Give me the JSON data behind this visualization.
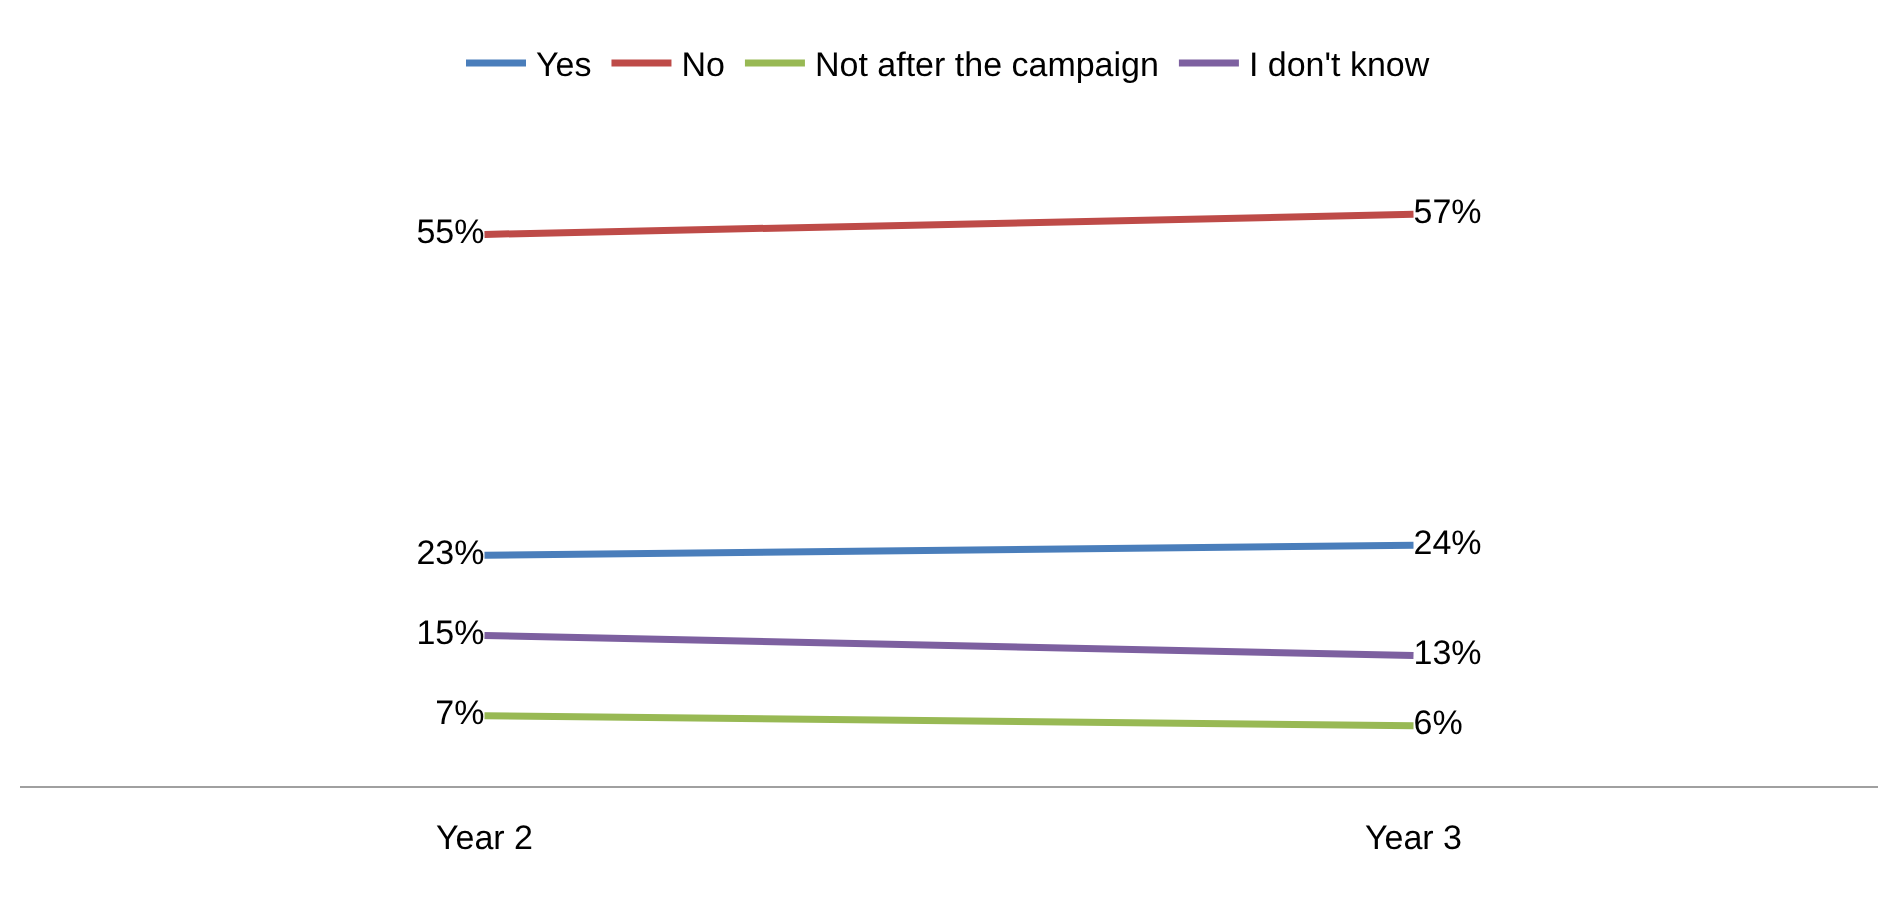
{
  "chart_data": {
    "type": "line",
    "categories": [
      "Year 2",
      "Year 3"
    ],
    "series": [
      {
        "name": "Yes",
        "color": "#4a7ebb",
        "values": [
          23,
          24
        ],
        "value_labels": [
          "23%",
          "24%"
        ]
      },
      {
        "name": "No",
        "color": "#be4b48",
        "values": [
          55,
          57
        ],
        "value_labels": [
          "55%",
          "57%"
        ]
      },
      {
        "name": "Not after the campaign",
        "color": "#98b954",
        "values": [
          7,
          6
        ],
        "value_labels": [
          "7%",
          "6%"
        ]
      },
      {
        "name": "I don't know",
        "color": "#7d60a0",
        "values": [
          15,
          13
        ],
        "value_labels": [
          "15%",
          "13%"
        ]
      }
    ],
    "legend": "top",
    "marker": "none",
    "line_style": "solid"
  }
}
